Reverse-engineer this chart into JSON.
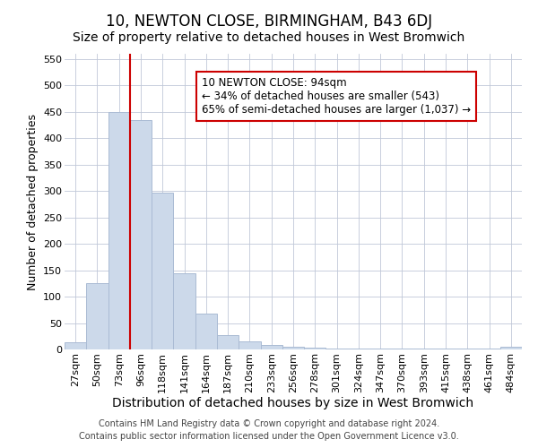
{
  "title": "10, NEWTON CLOSE, BIRMINGHAM, B43 6DJ",
  "subtitle": "Size of property relative to detached houses in West Bromwich",
  "xlabel": "Distribution of detached houses by size in West Bromwich",
  "ylabel": "Number of detached properties",
  "categories": [
    "27sqm",
    "50sqm",
    "73sqm",
    "96sqm",
    "118sqm",
    "141sqm",
    "164sqm",
    "187sqm",
    "210sqm",
    "233sqm",
    "256sqm",
    "278sqm",
    "301sqm",
    "324sqm",
    "347sqm",
    "370sqm",
    "393sqm",
    "415sqm",
    "438sqm",
    "461sqm",
    "484sqm"
  ],
  "values": [
    14,
    125,
    450,
    435,
    297,
    145,
    68,
    28,
    15,
    8,
    5,
    3,
    1,
    1,
    1,
    1,
    1,
    1,
    1,
    1,
    5
  ],
  "bar_color": "#ccd9ea",
  "bar_edge_color": "#aabbd4",
  "ylim": [
    0,
    560
  ],
  "yticks": [
    0,
    50,
    100,
    150,
    200,
    250,
    300,
    350,
    400,
    450,
    500,
    550
  ],
  "property_line_x": 2.5,
  "property_line_color": "#cc0000",
  "annotation_text": "10 NEWTON CLOSE: 94sqm\n← 34% of detached houses are smaller (543)\n65% of semi-detached houses are larger (1,037) →",
  "annotation_box_color": "#ffffff",
  "annotation_box_edge_color": "#cc0000",
  "footer_line1": "Contains HM Land Registry data © Crown copyright and database right 2024.",
  "footer_line2": "Contains public sector information licensed under the Open Government Licence v3.0.",
  "title_fontsize": 12,
  "subtitle_fontsize": 10,
  "tick_fontsize": 8,
  "ylabel_fontsize": 9,
  "xlabel_fontsize": 10,
  "annotation_fontsize": 8.5,
  "footer_fontsize": 7
}
